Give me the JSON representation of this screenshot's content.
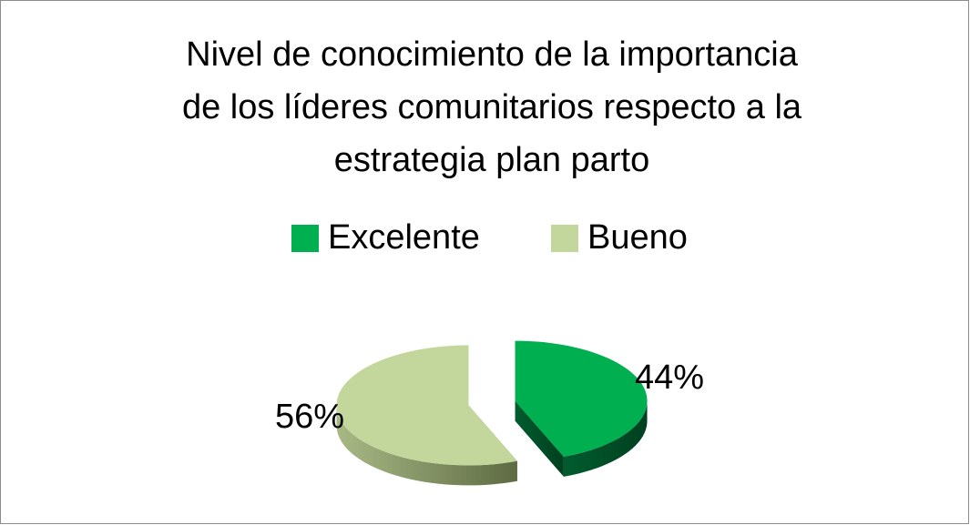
{
  "chart_data": {
    "type": "pie",
    "title": [
      "Nivel de conocimiento de la importancia",
      "de los líderes comunitarios respecto a la",
      "estrategia plan parto"
    ],
    "categories": [
      "Excelente",
      "Bueno"
    ],
    "values": [
      44,
      56
    ],
    "value_labels": [
      "44%",
      "56%"
    ],
    "colors": [
      "#00b050",
      "#c3d69b"
    ],
    "legend": "top"
  }
}
